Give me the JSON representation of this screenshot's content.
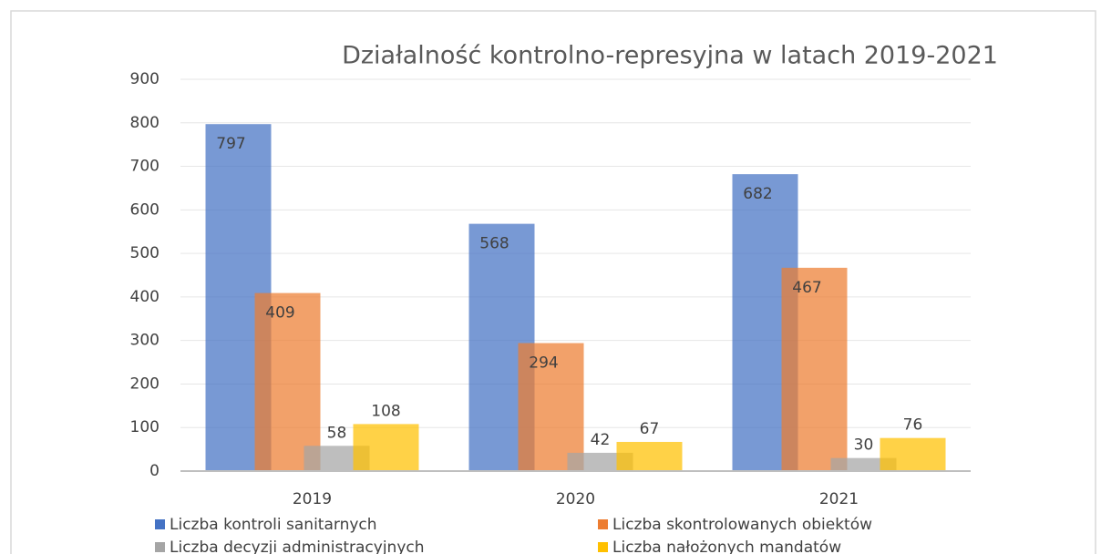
{
  "chart_data": {
    "type": "bar",
    "title": "Działalność kontrolno-represyjna w latach 2019-2021",
    "categories": [
      "2019",
      "2020",
      "2021"
    ],
    "series": [
      {
        "name": "Liczba kontroli sanitarnych",
        "color": "#4472c4",
        "values": [
          797,
          568,
          682
        ]
      },
      {
        "name": "Liczba skontrolowanych obiektów",
        "color": "#ed7d31",
        "values": [
          409,
          294,
          467
        ]
      },
      {
        "name": "Liczba decyzji administracyjnych",
        "color": "#a5a5a5",
        "values": [
          58,
          42,
          30
        ]
      },
      {
        "name": "Liczba nałożonych mandatów",
        "color": "#ffc000",
        "values": [
          108,
          67,
          76
        ]
      }
    ],
    "ylim": [
      0,
      900
    ],
    "yticks": [
      0,
      100,
      200,
      300,
      400,
      500,
      600,
      700,
      800,
      900
    ],
    "grid": true,
    "legend": "bottom"
  }
}
